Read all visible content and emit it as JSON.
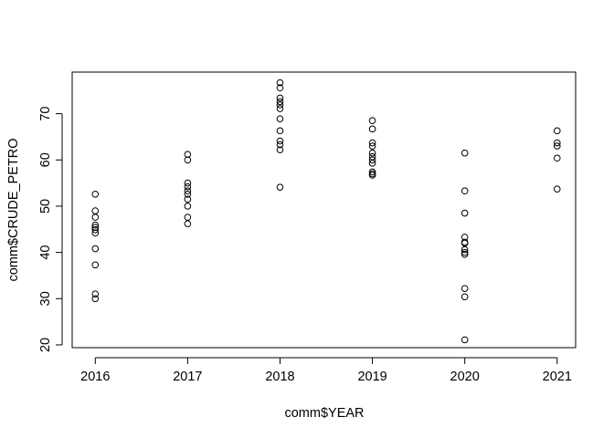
{
  "chart_data": {
    "type": "scatter",
    "title": "",
    "xlabel": "comm$YEAR",
    "ylabel": "comm$CRUDE_PETRO",
    "xlim": [
      2015.75,
      2021.2
    ],
    "ylim": [
      19.4,
      79.0
    ],
    "x_ticks": [
      2016,
      2017,
      2018,
      2019,
      2020,
      2021
    ],
    "y_ticks": [
      20,
      30,
      40,
      50,
      60,
      70
    ],
    "grid": false,
    "legend": "none",
    "marker": "open-circle",
    "series": [
      {
        "points": [
          {
            "x": 2016,
            "y": 52.6
          },
          {
            "x": 2016,
            "y": 49.0
          },
          {
            "x": 2016,
            "y": 47.6
          },
          {
            "x": 2016,
            "y": 45.9
          },
          {
            "x": 2016,
            "y": 45.4
          },
          {
            "x": 2016,
            "y": 44.9
          },
          {
            "x": 2016,
            "y": 44.2
          },
          {
            "x": 2016,
            "y": 40.8
          },
          {
            "x": 2016,
            "y": 37.3
          },
          {
            "x": 2016,
            "y": 31.0
          },
          {
            "x": 2016,
            "y": 30.0
          },
          {
            "x": 2017,
            "y": 61.2
          },
          {
            "x": 2017,
            "y": 60.0
          },
          {
            "x": 2017,
            "y": 55.0
          },
          {
            "x": 2017,
            "y": 54.2
          },
          {
            "x": 2017,
            "y": 53.3
          },
          {
            "x": 2017,
            "y": 52.6
          },
          {
            "x": 2017,
            "y": 51.5
          },
          {
            "x": 2017,
            "y": 50.0
          },
          {
            "x": 2017,
            "y": 47.6
          },
          {
            "x": 2017,
            "y": 46.2
          },
          {
            "x": 2018,
            "y": 76.7
          },
          {
            "x": 2018,
            "y": 75.6
          },
          {
            "x": 2018,
            "y": 73.4
          },
          {
            "x": 2018,
            "y": 72.6
          },
          {
            "x": 2018,
            "y": 71.9
          },
          {
            "x": 2018,
            "y": 71.1
          },
          {
            "x": 2018,
            "y": 68.9
          },
          {
            "x": 2018,
            "y": 66.3
          },
          {
            "x": 2018,
            "y": 64.1
          },
          {
            "x": 2018,
            "y": 63.3
          },
          {
            "x": 2018,
            "y": 62.2
          },
          {
            "x": 2018,
            "y": 54.1
          },
          {
            "x": 2019,
            "y": 68.5
          },
          {
            "x": 2019,
            "y": 66.7
          },
          {
            "x": 2019,
            "y": 63.7
          },
          {
            "x": 2019,
            "y": 63.0
          },
          {
            "x": 2019,
            "y": 61.5
          },
          {
            "x": 2019,
            "y": 60.7
          },
          {
            "x": 2019,
            "y": 60.0
          },
          {
            "x": 2019,
            "y": 59.3
          },
          {
            "x": 2019,
            "y": 57.4
          },
          {
            "x": 2019,
            "y": 57.0
          },
          {
            "x": 2019,
            "y": 56.7
          },
          {
            "x": 2020,
            "y": 61.5
          },
          {
            "x": 2020,
            "y": 53.3
          },
          {
            "x": 2020,
            "y": 48.5
          },
          {
            "x": 2020,
            "y": 43.3
          },
          {
            "x": 2020,
            "y": 42.2
          },
          {
            "x": 2020,
            "y": 42.0
          },
          {
            "x": 2020,
            "y": 40.6
          },
          {
            "x": 2020,
            "y": 40.0
          },
          {
            "x": 2020,
            "y": 39.6
          },
          {
            "x": 2020,
            "y": 32.2
          },
          {
            "x": 2020,
            "y": 30.4
          },
          {
            "x": 2020,
            "y": 21.1
          },
          {
            "x": 2021,
            "y": 66.3
          },
          {
            "x": 2021,
            "y": 63.7
          },
          {
            "x": 2021,
            "y": 63.0
          },
          {
            "x": 2021,
            "y": 60.4
          },
          {
            "x": 2021,
            "y": 53.7
          }
        ]
      }
    ]
  }
}
